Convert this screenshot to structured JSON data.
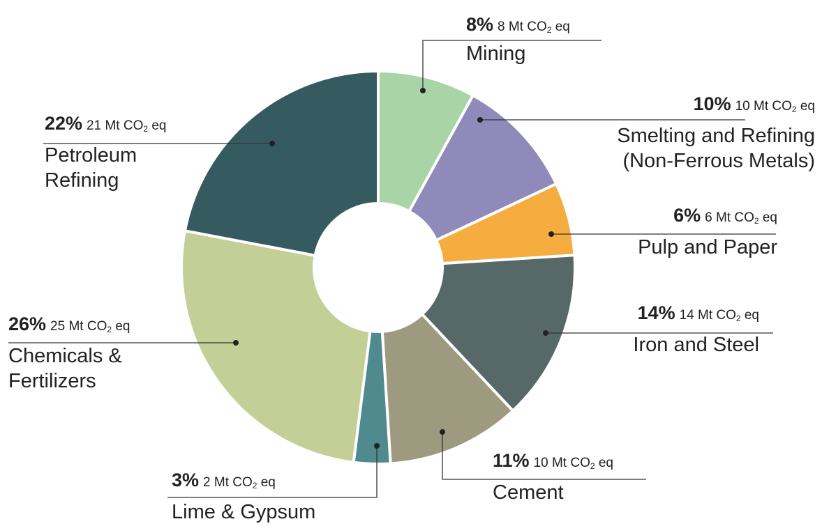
{
  "chart_data": {
    "type": "pie",
    "variant": "donut",
    "slices": [
      {
        "name": "Mining",
        "percent": "8%",
        "amount": "8 Mt CO",
        "unit": "eq",
        "value": 8,
        "color": "#a9d4a6"
      },
      {
        "name": "Smelting and Refining (Non-Ferrous Metals)",
        "name_lines": [
          "Smelting and Refining",
          "(Non-Ferrous Metals)"
        ],
        "percent": "10%",
        "amount": "10 Mt CO",
        "unit": "eq",
        "value": 10,
        "color": "#8f8ab9"
      },
      {
        "name": "Pulp and Paper",
        "name_lines": [
          "Pulp and Paper"
        ],
        "percent": "6%",
        "amount": "6 Mt CO",
        "unit": "eq",
        "value": 6,
        "color": "#f5ad3f"
      },
      {
        "name": "Iron and Steel",
        "name_lines": [
          "Iron and Steel"
        ],
        "percent": "14%",
        "amount": "14 Mt CO",
        "unit": "eq",
        "value": 14,
        "color": "#566868"
      },
      {
        "name": "Cement",
        "name_lines": [
          "Cement"
        ],
        "percent": "11%",
        "amount": "10 Mt CO",
        "unit": "eq",
        "value": 11,
        "color": "#9e9a80"
      },
      {
        "name": "Lime & Gypsum",
        "name_lines": [
          "Lime & Gypsum"
        ],
        "percent": "3%",
        "amount": "2 Mt CO",
        "unit": "eq",
        "value": 3,
        "color": "#4f8a8f"
      },
      {
        "name": "Chemicals & Fertilizers",
        "name_lines": [
          "Chemicals &",
          "Fertilizers"
        ],
        "percent": "26%",
        "amount": "25 Mt CO",
        "unit": "eq",
        "value": 26,
        "color": "#c4cf97"
      },
      {
        "name": "Petroleum Refining",
        "name_lines": [
          "Petroleum",
          "Refining"
        ],
        "percent": "22%",
        "amount": "21 Mt CO",
        "unit": "eq",
        "value": 22,
        "color": "#355b60"
      }
    ]
  },
  "labels": {
    "mining": {
      "percent": "8%",
      "amount": "8 Mt CO",
      "sub": "2",
      "unit": "eq",
      "name": "Mining"
    },
    "smelting": {
      "percent": "10%",
      "amount": "10 Mt CO",
      "sub": "2",
      "unit": "eq",
      "name1": "Smelting and Refining",
      "name2": "(Non-Ferrous Metals)"
    },
    "pulp": {
      "percent": "6%",
      "amount": "6 Mt CO",
      "sub": "2",
      "unit": "eq",
      "name": "Pulp and Paper"
    },
    "iron": {
      "percent": "14%",
      "amount": "14 Mt CO",
      "sub": "2",
      "unit": "eq",
      "name": "Iron and Steel"
    },
    "cement": {
      "percent": "11%",
      "amount": "10 Mt CO",
      "sub": "2",
      "unit": "eq",
      "name": "Cement"
    },
    "lime": {
      "percent": "3%",
      "amount": "2 Mt CO",
      "sub": "2",
      "unit": "eq",
      "name": "Lime & Gypsum"
    },
    "chemicals": {
      "percent": "26%",
      "amount": "25 Mt CO",
      "sub": "2",
      "unit": "eq",
      "name1": "Chemicals &",
      "name2": "Fertilizers"
    },
    "petroleum": {
      "percent": "22%",
      "amount": "21 Mt CO",
      "sub": "2",
      "unit": "eq",
      "name1": "Petroleum",
      "name2": "Refining"
    }
  }
}
